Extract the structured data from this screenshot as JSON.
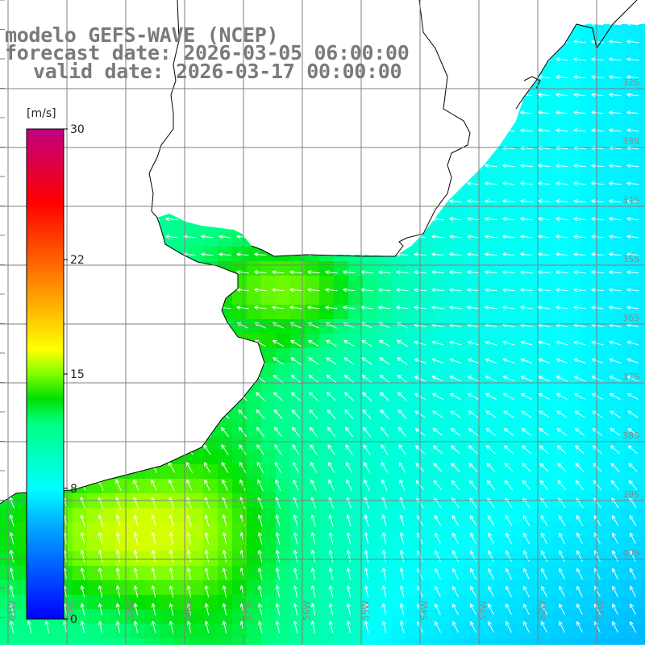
{
  "title": {
    "line1": "modelo GEFS-WAVE (NCEP)",
    "line2": "forecast date: 2026-03-05 06:00:00",
    "line3": "valid date: 2026-03-17 00:00:00"
  },
  "colorbar": {
    "unit": "[m/s]",
    "ticks": [
      {
        "value": 30,
        "label": "30"
      },
      {
        "value": 22,
        "label": "22"
      },
      {
        "value": 15,
        "label": "15"
      },
      {
        "value": 8,
        "label": "8"
      },
      {
        "value": 0,
        "label": "0"
      }
    ],
    "min": 0,
    "max": 30,
    "colors": [
      "#0000ff",
      "#00c8ff",
      "#00ffff",
      "#00ff00",
      "#ffff00",
      "#ff8000",
      "#ff0000",
      "#c00080"
    ]
  },
  "map": {
    "lat_labels": [
      "32S",
      "33S",
      "34S",
      "35S",
      "36S",
      "37S",
      "38S",
      "39S",
      "40S"
    ],
    "lon_labels": [
      "61W",
      "60W",
      "59W",
      "58W",
      "57W",
      "56W",
      "55W",
      "54W",
      "53W",
      "52W",
      "51W"
    ],
    "land_color": "#ffffff",
    "grid_color": "#7f7f7f",
    "arrow_color": "#ffffff",
    "field": "wind speed and direction"
  }
}
